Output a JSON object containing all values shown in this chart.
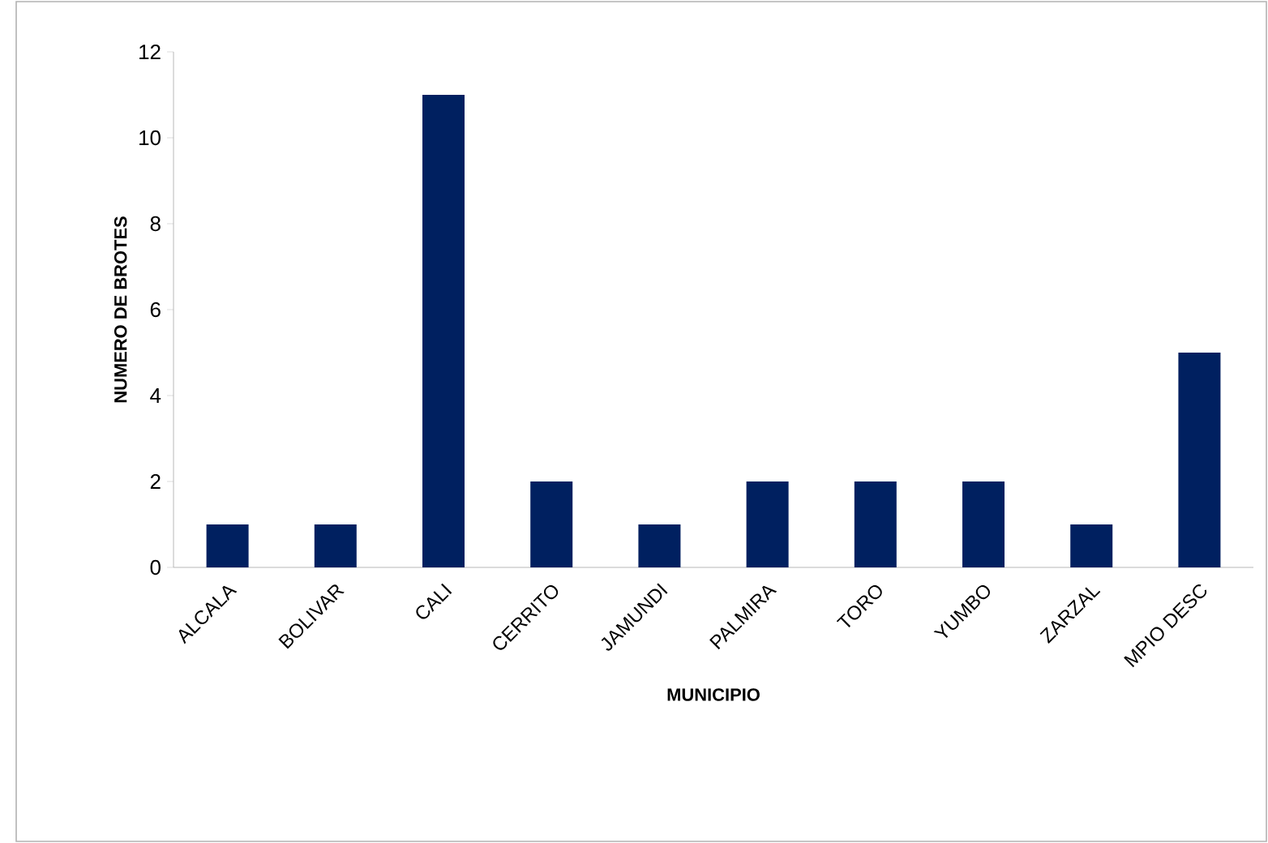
{
  "chart_data": {
    "type": "bar",
    "categories": [
      "ALCALA",
      "BOLIVAR",
      "CALI",
      "CERRITO",
      "JAMUNDI",
      "PALMIRA",
      "TORO",
      "YUMBO",
      "ZARZAL",
      "MPIO DESC"
    ],
    "values": [
      1,
      1,
      11,
      2,
      1,
      2,
      2,
      2,
      1,
      5
    ],
    "color": "#002060",
    "ylim": [
      0,
      12
    ],
    "yticks": [
      0,
      2,
      4,
      6,
      8,
      10,
      12
    ],
    "xlabel": "MUNICIPIO",
    "ylabel": "NUMERO DE BROTES"
  }
}
